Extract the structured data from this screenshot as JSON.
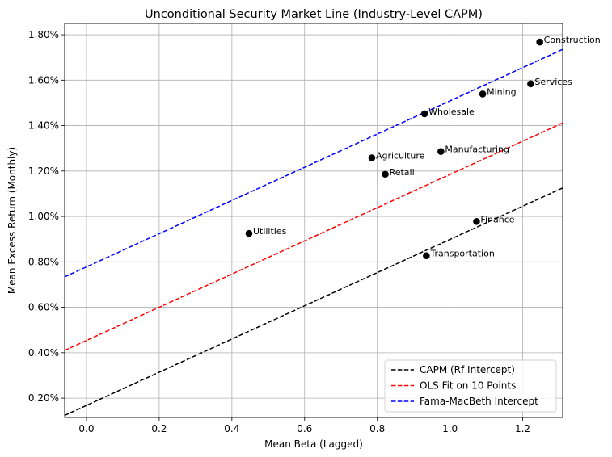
{
  "chart_data": {
    "type": "scatter",
    "title": "Unconditional Security Market Line (Industry-Level CAPM)",
    "xlabel": "Mean Beta (Lagged)",
    "ylabel": "Mean Excess Return (Monthly)",
    "xlim": [
      -0.06,
      1.31
    ],
    "ylim": [
      0.00115,
      0.0185
    ],
    "x_ticks": [
      0.0,
      0.2,
      0.4,
      0.6,
      0.8,
      1.0,
      1.2
    ],
    "x_tick_labels": [
      "0.0",
      "0.2",
      "0.4",
      "0.6",
      "0.8",
      "1.0",
      "1.2"
    ],
    "y_ticks": [
      0.002,
      0.004,
      0.006,
      0.008,
      0.01,
      0.012,
      0.014,
      0.016,
      0.018
    ],
    "y_tick_labels": [
      "0.20%",
      "0.40%",
      "0.60%",
      "0.80%",
      "1.00%",
      "1.20%",
      "1.40%",
      "1.60%",
      "1.80%"
    ],
    "grid": true,
    "legend_position": "lower-right",
    "points": [
      {
        "label": "Utilities",
        "x": 0.447,
        "y": 0.00925
      },
      {
        "label": "Agriculture",
        "x": 0.785,
        "y": 0.01258
      },
      {
        "label": "Retail",
        "x": 0.822,
        "y": 0.01186
      },
      {
        "label": "Wholesale",
        "x": 0.93,
        "y": 0.01452
      },
      {
        "label": "Transportation",
        "x": 0.935,
        "y": 0.00827
      },
      {
        "label": "Manufacturing",
        "x": 0.975,
        "y": 0.01286
      },
      {
        "label": "Finance",
        "x": 1.073,
        "y": 0.00978
      },
      {
        "label": "Mining",
        "x": 1.09,
        "y": 0.01539
      },
      {
        "label": "Services",
        "x": 1.222,
        "y": 0.01584
      },
      {
        "label": "Construction",
        "x": 1.247,
        "y": 0.01768
      }
    ],
    "series": [
      {
        "name": "CAPM (Rf Intercept)",
        "color": "#000000",
        "style": "dashed",
        "intercept": 0.00168,
        "slope": 0.00731
      },
      {
        "name": "OLS Fit on 10 Points",
        "color": "#ff0000",
        "style": "dashed",
        "intercept": 0.00454,
        "slope": 0.00731
      },
      {
        "name": "Fama-MacBeth Intercept",
        "color": "#0000ff",
        "style": "dashed",
        "intercept": 0.00778,
        "slope": 0.00731
      }
    ],
    "marker_color": "#000000"
  }
}
